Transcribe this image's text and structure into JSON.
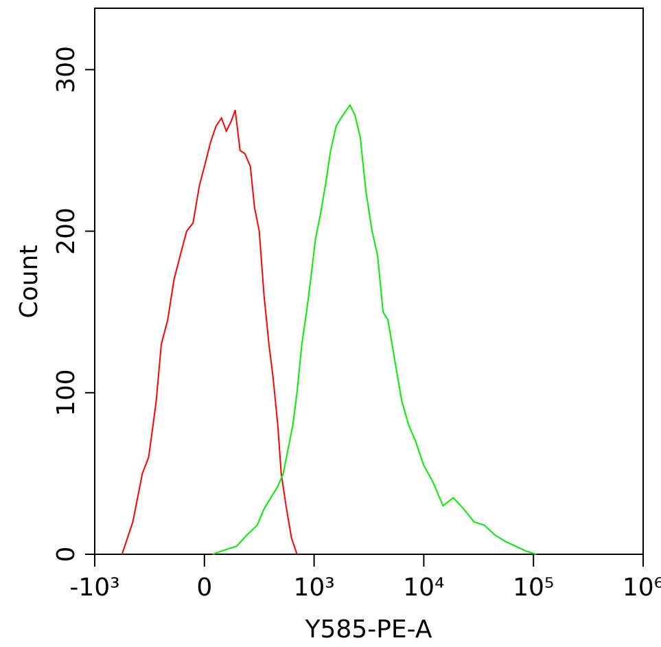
{
  "chart_data": {
    "type": "line",
    "x_label": "Y585-PE-A",
    "y_label": "Count",
    "xscale": "biexponential",
    "xlim": [
      -1000,
      1000000
    ],
    "xticks": [
      {
        "value": -1000,
        "label": "-10³"
      },
      0,
      {
        "value": 1000,
        "label": "10³"
      },
      {
        "value": 10000,
        "label": "10⁴"
      },
      {
        "value": 100000,
        "label": "10⁵"
      },
      {
        "value": 1000000,
        "label": "10⁶"
      }
    ],
    "ylim": [
      0,
      338
    ],
    "yticks": [
      0,
      100,
      200,
      300
    ],
    "series": [
      {
        "color": "#ff0000",
        "x": [
          -751,
          -653,
          -566,
          -509,
          -468,
          -439,
          -393,
          -335,
          -277,
          -220,
          -162,
          -104,
          -46,
          0,
          56,
          106,
          156,
          200,
          244,
          281,
          325,
          369,
          419,
          456,
          500,
          544,
          588,
          625,
          669,
          700,
          744,
          794,
          844
        ],
        "values": [
          0,
          20,
          50,
          60,
          80,
          95,
          130,
          145,
          170,
          185,
          200,
          205,
          228,
          240,
          255,
          265,
          270,
          262,
          268,
          275,
          250,
          248,
          240,
          215,
          200,
          160,
          130,
          110,
          80,
          50,
          30,
          10,
          0
        ]
      },
      {
        "color": "#00ee00",
        "x": [
          75,
          200,
          294,
          388,
          481,
          544,
          606,
          669,
          719,
          763,
          806,
          844,
          888,
          931,
          969,
          1029,
          1139,
          1279,
          1416,
          1589,
          1758,
          1976,
          2125,
          2352,
          2638,
          2962,
          3377,
          3790,
          4256,
          4711,
          5447,
          6293,
          7277,
          8414,
          10000,
          12070,
          15000,
          18620,
          23180,
          28780,
          35730,
          44460,
          55210,
          68550,
          85310,
          106000
        ],
        "values": [
          0,
          3,
          5,
          12,
          18,
          28,
          35,
          42,
          50,
          65,
          80,
          100,
          130,
          150,
          170,
          195,
          210,
          230,
          250,
          265,
          270,
          275,
          278,
          272,
          258,
          225,
          200,
          185,
          150,
          145,
          120,
          95,
          80,
          70,
          55,
          45,
          30,
          35,
          28,
          20,
          18,
          12,
          8,
          5,
          2,
          0
        ]
      }
    ]
  }
}
